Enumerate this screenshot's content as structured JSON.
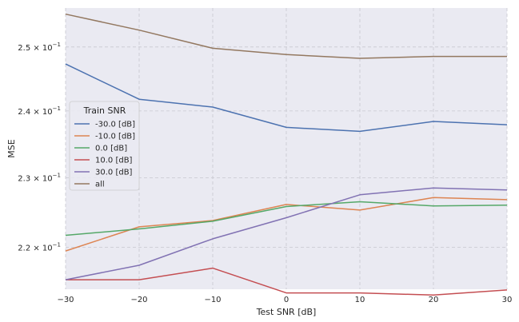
{
  "chart_data": {
    "type": "line",
    "xlabel": "Test SNR [dB]",
    "ylabel": "MSE",
    "x": [
      -30,
      -20,
      -10,
      0,
      10,
      20,
      30
    ],
    "xticks": [
      -30,
      -20,
      -10,
      0,
      10,
      20,
      30
    ],
    "xtick_labels": [
      "−30",
      "−20",
      "−10",
      "0",
      "10",
      "20",
      "30"
    ],
    "xlim": [
      -30,
      30
    ],
    "yscale": "log",
    "ylim": [
      0.2142,
      0.2563
    ],
    "yticks": [
      0.22,
      0.23,
      0.24,
      0.25
    ],
    "ytick_labels": [
      {
        "mantissa": "2.2",
        "base": "10",
        "exp": "−1"
      },
      {
        "mantissa": "2.3",
        "base": "10",
        "exp": "−1"
      },
      {
        "mantissa": "2.4",
        "base": "10",
        "exp": "−1"
      },
      {
        "mantissa": "2.5",
        "base": "10",
        "exp": "−1"
      }
    ],
    "grid": true,
    "legend": {
      "title": "Train SNR",
      "position": "center-left"
    },
    "series": [
      {
        "name": "-30.0 [dB]",
        "color": "#4c72b0",
        "values": [
          0.2473,
          0.2418,
          0.2406,
          0.2375,
          0.2369,
          0.2384,
          0.2379
        ]
      },
      {
        "name": "-10.0 [dB]",
        "color": "#dd8452",
        "values": [
          0.2195,
          0.2229,
          0.2238,
          0.2261,
          0.2253,
          0.2271,
          0.2268
        ]
      },
      {
        "name": "0.0 [dB]",
        "color": "#55a868",
        "values": [
          0.2217,
          0.2226,
          0.2237,
          0.2258,
          0.2265,
          0.2259,
          0.226
        ]
      },
      {
        "name": "10.0 [dB]",
        "color": "#c44e52",
        "values": [
          0.2155,
          0.2155,
          0.2171,
          0.2137,
          0.2137,
          0.2134,
          0.2141
        ]
      },
      {
        "name": "30.0 [dB]",
        "color": "#8172b3",
        "values": [
          0.2155,
          0.2175,
          0.2212,
          0.2242,
          0.2275,
          0.2285,
          0.2282
        ]
      },
      {
        "name": "all",
        "color": "#937860",
        "values": [
          0.2553,
          0.2527,
          0.2498,
          0.2488,
          0.2482,
          0.2485,
          0.2485
        ]
      }
    ]
  }
}
